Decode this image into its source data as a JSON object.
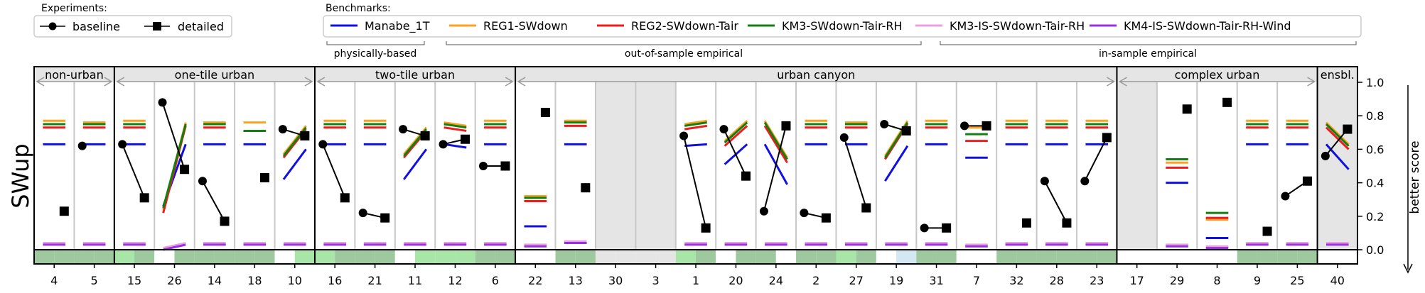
{
  "legend_experiments": {
    "title": "Experiments:",
    "items": [
      {
        "label": "baseline",
        "marker": "circle"
      },
      {
        "label": "detailed",
        "marker": "square"
      }
    ]
  },
  "legend_benchmarks": {
    "title": "Benchmarks:",
    "items": [
      {
        "label": "Manabe_1T",
        "color": "#1010e0"
      },
      {
        "label": "REG1-SWdown",
        "color": "#ffa020"
      },
      {
        "label": "REG2-SWdown-Tair",
        "color": "#ee1c1c"
      },
      {
        "label": "KM3-SWdown-Tair-RH",
        "color": "#108010"
      },
      {
        "label": "KM3-IS-SWdown-Tair-RH",
        "color": "#e8a0e0"
      },
      {
        "label": "KM4-IS-SWdown-Tair-RH-Wind",
        "color": "#9a30e0"
      }
    ],
    "groups": [
      "physically-based",
      "out-of-sample empirical",
      "in-sample empirical"
    ]
  },
  "chart_data": {
    "type": "scatter",
    "ylabel": "SWup",
    "right_label": "better score",
    "ylim": [
      0,
      1
    ],
    "yticks": [
      "0.0",
      "0.2",
      "0.4",
      "0.6",
      "0.8",
      "1.0"
    ],
    "groups": [
      {
        "label": "non-urban",
        "span": [
          0,
          2
        ]
      },
      {
        "label": "one-tile urban",
        "span": [
          2,
          7
        ]
      },
      {
        "label": "two-tile urban",
        "span": [
          7,
          12
        ]
      },
      {
        "label": "urban canyon",
        "span": [
          12,
          27
        ]
      },
      {
        "label": "complex urban",
        "span": [
          27,
          32
        ]
      },
      {
        "label": "ensbl.",
        "span": [
          32,
          33
        ]
      }
    ],
    "series_colors": {
      "manabe": "#1010e0",
      "reg1": "#ffa020",
      "reg2": "#ee1c1c",
      "km3": "#108010",
      "km3is": "#e8a0e0",
      "km4is": "#9a30e0"
    },
    "sites": [
      {
        "label": "4",
        "baseline": null,
        "detailed": 0.23,
        "manabe": [
          0.63,
          0.63
        ],
        "reg1": [
          0.77,
          0.77
        ],
        "reg2": [
          0.73,
          0.73
        ],
        "km3": [
          0.75,
          0.75
        ],
        "km3is": [
          0.04,
          0.04
        ],
        "km4is": [
          0.03,
          0.03
        ],
        "strip": [
          "#9ec89e",
          "#9ec89e"
        ]
      },
      {
        "label": "5",
        "baseline": 0.62,
        "detailed": null,
        "manabe": [
          0.63,
          0.63
        ],
        "reg1": [
          0.76,
          0.76
        ],
        "reg2": [
          0.73,
          0.73
        ],
        "km3": [
          0.75,
          0.75
        ],
        "km3is": [
          0.04,
          0.04
        ],
        "km4is": [
          0.03,
          0.03
        ],
        "strip": [
          "#9ec89e",
          "#9ec89e"
        ]
      },
      {
        "label": "15",
        "baseline": 0.63,
        "detailed": 0.31,
        "manabe": [
          0.63,
          0.63
        ],
        "reg1": [
          0.77,
          0.77
        ],
        "reg2": [
          0.73,
          0.73
        ],
        "km3": [
          0.75,
          0.75
        ],
        "km3is": [
          0.04,
          0.04
        ],
        "km4is": [
          0.03,
          0.03
        ],
        "strip": [
          "#a8e6a8",
          "#9ec89e"
        ]
      },
      {
        "label": "26",
        "baseline": 0.88,
        "detailed": 0.48,
        "manabe": [
          0.26,
          0.63
        ],
        "reg1": [
          0.24,
          0.76
        ],
        "reg2": [
          0.22,
          0.74
        ],
        "km3": [
          0.25,
          0.75
        ],
        "km3is": [
          0.01,
          0.04
        ],
        "km4is": [
          0.0,
          0.03
        ],
        "strip": [
          "#ffffff",
          "#9ec89e"
        ]
      },
      {
        "label": "14",
        "baseline": 0.41,
        "detailed": 0.17,
        "manabe": [
          0.63,
          0.63
        ],
        "reg1": [
          0.76,
          0.76
        ],
        "reg2": [
          0.73,
          0.73
        ],
        "km3": [
          0.75,
          0.75
        ],
        "km3is": [
          0.04,
          0.04
        ],
        "km4is": [
          0.03,
          0.03
        ],
        "strip": [
          "#9ec89e",
          "#9ec89e"
        ]
      },
      {
        "label": "18",
        "baseline": null,
        "detailed": 0.43,
        "manabe": [
          0.63,
          0.63
        ],
        "reg1": [
          0.76,
          0.76
        ],
        "reg2": [
          0.71,
          0.71
        ],
        "km3": [
          0.71,
          0.71
        ],
        "km3is": [
          0.04,
          0.04
        ],
        "km4is": [
          0.03,
          0.03
        ],
        "strip": [
          "#9ec89e",
          "#9ec89e"
        ]
      },
      {
        "label": "10",
        "baseline": 0.72,
        "detailed": 0.68,
        "manabe": [
          0.42,
          0.6
        ],
        "reg1": [
          0.57,
          0.74
        ],
        "reg2": [
          0.55,
          0.72
        ],
        "km3": [
          0.56,
          0.73
        ],
        "km3is": [
          0.04,
          0.04
        ],
        "km4is": [
          0.03,
          0.03
        ],
        "strip": [
          "#ffffff",
          "#a8e6a8"
        ]
      },
      {
        "label": "16",
        "baseline": 0.63,
        "detailed": 0.31,
        "manabe": [
          0.63,
          0.63
        ],
        "reg1": [
          0.77,
          0.77
        ],
        "reg2": [
          0.73,
          0.73
        ],
        "km3": [
          0.75,
          0.75
        ],
        "km3is": [
          0.04,
          0.04
        ],
        "km4is": [
          0.03,
          0.03
        ],
        "strip": [
          "#a8e6a8",
          "#9ec89e"
        ]
      },
      {
        "label": "21",
        "baseline": 0.22,
        "detailed": 0.19,
        "manabe": [
          0.63,
          0.63
        ],
        "reg1": [
          0.77,
          0.77
        ],
        "reg2": [
          0.73,
          0.73
        ],
        "km3": [
          0.75,
          0.75
        ],
        "km3is": [
          0.04,
          0.04
        ],
        "km4is": [
          0.03,
          0.03
        ],
        "strip": [
          "#9ec89e",
          "#9ec89e"
        ]
      },
      {
        "label": "11",
        "baseline": 0.72,
        "detailed": 0.68,
        "manabe": [
          0.42,
          0.6
        ],
        "reg1": [
          0.57,
          0.73
        ],
        "reg2": [
          0.55,
          0.71
        ],
        "km3": [
          0.56,
          0.72
        ],
        "km3is": [
          0.04,
          0.04
        ],
        "km4is": [
          0.03,
          0.03
        ],
        "strip": [
          "#ffffff",
          "#a8e6a8"
        ]
      },
      {
        "label": "12",
        "baseline": 0.63,
        "detailed": 0.66,
        "manabe": [
          0.63,
          0.61
        ],
        "reg1": [
          0.76,
          0.74
        ],
        "reg2": [
          0.73,
          0.71
        ],
        "km3": [
          0.75,
          0.73
        ],
        "km3is": [
          0.04,
          0.04
        ],
        "km4is": [
          0.03,
          0.03
        ],
        "strip": [
          "#a8e6a8",
          "#a8e6a8"
        ]
      },
      {
        "label": "6",
        "baseline": 0.5,
        "detailed": 0.5,
        "manabe": [
          0.63,
          0.63
        ],
        "reg1": [
          0.77,
          0.77
        ],
        "reg2": [
          0.73,
          0.73
        ],
        "km3": [
          0.75,
          0.75
        ],
        "km3is": [
          0.04,
          0.04
        ],
        "km4is": [
          0.03,
          0.03
        ],
        "strip": [
          "#9ec89e",
          "#9ec89e"
        ]
      },
      {
        "label": "22",
        "baseline": null,
        "detailed": 0.82,
        "manabe": [
          0.14,
          0.14
        ],
        "reg1": [
          0.32,
          0.32
        ],
        "reg2": [
          0.29,
          0.29
        ],
        "km3": [
          0.31,
          0.31
        ],
        "km3is": [
          0.03,
          0.03
        ],
        "km4is": [
          0.02,
          0.02
        ],
        "strip": [
          "#ffffff",
          "#ffffff"
        ]
      },
      {
        "label": "13",
        "baseline": null,
        "detailed": 0.37,
        "manabe": [
          0.63,
          0.63
        ],
        "reg1": [
          0.77,
          0.77
        ],
        "reg2": [
          0.74,
          0.74
        ],
        "km3": [
          0.76,
          0.76
        ],
        "km3is": [
          0.05,
          0.05
        ],
        "km4is": [
          0.04,
          0.04
        ],
        "strip": [
          "#9ec89e",
          "#9ec89e"
        ]
      },
      {
        "label": "30",
        "baseline": null,
        "detailed": null,
        "empty": true,
        "strip": [
          "#e5e5e5",
          "#e5e5e5"
        ]
      },
      {
        "label": "3",
        "baseline": null,
        "detailed": null,
        "empty": true,
        "strip": [
          "#e5e5e5",
          "#e5e5e5"
        ]
      },
      {
        "label": "1",
        "baseline": 0.68,
        "detailed": 0.13,
        "manabe": [
          0.62,
          0.63
        ],
        "reg1": [
          0.75,
          0.77
        ],
        "reg2": [
          0.72,
          0.74
        ],
        "km3": [
          0.74,
          0.76
        ],
        "km3is": [
          0.04,
          0.04
        ],
        "km4is": [
          0.03,
          0.03
        ],
        "strip": [
          "#a8e6a8",
          "#9ec89e"
        ]
      },
      {
        "label": "20",
        "baseline": 0.72,
        "detailed": 0.44,
        "manabe": [
          0.51,
          0.63
        ],
        "reg1": [
          0.65,
          0.77
        ],
        "reg2": [
          0.62,
          0.74
        ],
        "km3": [
          0.64,
          0.76
        ],
        "km3is": [
          0.04,
          0.04
        ],
        "km4is": [
          0.03,
          0.03
        ],
        "strip": [
          "#ffffff",
          "#9ec89e"
        ]
      },
      {
        "label": "24",
        "baseline": 0.23,
        "detailed": 0.74,
        "manabe": [
          0.63,
          0.39
        ],
        "reg1": [
          0.77,
          0.55
        ],
        "reg2": [
          0.74,
          0.52
        ],
        "km3": [
          0.76,
          0.54
        ],
        "km3is": [
          0.04,
          0.04
        ],
        "km4is": [
          0.03,
          0.03
        ],
        "strip": [
          "#9ec89e",
          "#ffffff"
        ]
      },
      {
        "label": "2",
        "baseline": 0.22,
        "detailed": 0.19,
        "manabe": [
          0.63,
          0.63
        ],
        "reg1": [
          0.77,
          0.77
        ],
        "reg2": [
          0.73,
          0.73
        ],
        "km3": [
          0.75,
          0.75
        ],
        "km3is": [
          0.04,
          0.04
        ],
        "km4is": [
          0.03,
          0.03
        ],
        "strip": [
          "#9ec89e",
          "#9ec89e"
        ]
      },
      {
        "label": "27",
        "baseline": 0.67,
        "detailed": 0.25,
        "manabe": [
          0.63,
          0.63
        ],
        "reg1": [
          0.76,
          0.76
        ],
        "reg2": [
          0.73,
          0.73
        ],
        "km3": [
          0.75,
          0.75
        ],
        "km3is": [
          0.04,
          0.04
        ],
        "km4is": [
          0.03,
          0.03
        ],
        "strip": [
          "#a8e6a8",
          "#9ec89e"
        ]
      },
      {
        "label": "19",
        "baseline": 0.75,
        "detailed": 0.71,
        "manabe": [
          0.41,
          0.62
        ],
        "reg1": [
          0.56,
          0.77
        ],
        "reg2": [
          0.54,
          0.75
        ],
        "km3": [
          0.55,
          0.76
        ],
        "km3is": [
          0.04,
          0.04
        ],
        "km4is": [
          0.03,
          0.03
        ],
        "strip": [
          "#ffffff",
          "#d4e8f4"
        ]
      },
      {
        "label": "31",
        "baseline": 0.13,
        "detailed": 0.13,
        "manabe": [
          0.63,
          0.63
        ],
        "reg1": [
          0.77,
          0.77
        ],
        "reg2": [
          0.73,
          0.73
        ],
        "km3": [
          0.75,
          0.75
        ],
        "km3is": [
          0.04,
          0.04
        ],
        "km4is": [
          0.03,
          0.03
        ],
        "strip": [
          "#9ec89e",
          "#9ec89e"
        ]
      },
      {
        "label": "7",
        "baseline": 0.74,
        "detailed": 0.74,
        "manabe": [
          0.55,
          0.55
        ],
        "reg1": [
          0.73,
          0.73
        ],
        "reg2": [
          0.65,
          0.65
        ],
        "km3": [
          0.69,
          0.69
        ],
        "km3is": [
          0.03,
          0.03
        ],
        "km4is": [
          0.02,
          0.02
        ],
        "strip": [
          "#ffffff",
          "#ffffff"
        ]
      },
      {
        "label": "32",
        "baseline": null,
        "detailed": 0.16,
        "manabe": [
          0.63,
          0.63
        ],
        "reg1": [
          0.77,
          0.77
        ],
        "reg2": [
          0.73,
          0.73
        ],
        "km3": [
          0.75,
          0.75
        ],
        "km3is": [
          0.04,
          0.04
        ],
        "km4is": [
          0.03,
          0.03
        ],
        "strip": [
          "#9ec89e",
          "#9ec89e"
        ]
      },
      {
        "label": "28",
        "baseline": 0.41,
        "detailed": 0.16,
        "manabe": [
          0.63,
          0.63
        ],
        "reg1": [
          0.77,
          0.77
        ],
        "reg2": [
          0.73,
          0.73
        ],
        "km3": [
          0.75,
          0.75
        ],
        "km3is": [
          0.04,
          0.04
        ],
        "km4is": [
          0.03,
          0.03
        ],
        "strip": [
          "#9ec89e",
          "#9ec89e"
        ]
      },
      {
        "label": "23",
        "baseline": 0.41,
        "detailed": 0.67,
        "manabe": [
          0.63,
          0.63
        ],
        "reg1": [
          0.77,
          0.77
        ],
        "reg2": [
          0.73,
          0.73
        ],
        "km3": [
          0.75,
          0.75
        ],
        "km3is": [
          0.04,
          0.04
        ],
        "km4is": [
          0.03,
          0.03
        ],
        "strip": [
          "#9ec89e",
          "#9ec89e"
        ]
      },
      {
        "label": "17",
        "baseline": null,
        "detailed": null,
        "empty": true,
        "strip": [
          "#ffffff",
          "#ffffff"
        ]
      },
      {
        "label": "29",
        "baseline": null,
        "detailed": 0.84,
        "manabe": [
          0.4,
          0.4
        ],
        "reg1": [
          0.52,
          0.52
        ],
        "reg2": [
          0.49,
          0.49
        ],
        "km3": [
          0.54,
          0.54
        ],
        "km3is": [
          0.03,
          0.03
        ],
        "km4is": [
          0.02,
          0.02
        ],
        "strip": [
          "#ffffff",
          "#ffffff"
        ]
      },
      {
        "label": "8",
        "baseline": null,
        "detailed": 0.88,
        "manabe": [
          0.07,
          0.07
        ],
        "reg1": [
          0.18,
          0.18
        ],
        "reg2": [
          0.19,
          0.19
        ],
        "km3": [
          0.22,
          0.22
        ],
        "km3is": [
          0.02,
          0.02
        ],
        "km4is": [
          0.01,
          0.01
        ],
        "strip": [
          "#ffffff",
          "#ffffff"
        ]
      },
      {
        "label": "9",
        "baseline": null,
        "detailed": 0.11,
        "manabe": [
          0.63,
          0.63
        ],
        "reg1": [
          0.77,
          0.77
        ],
        "reg2": [
          0.73,
          0.73
        ],
        "km3": [
          0.75,
          0.75
        ],
        "km3is": [
          0.04,
          0.04
        ],
        "km4is": [
          0.03,
          0.03
        ],
        "strip": [
          "#9ec89e",
          "#9ec89e"
        ]
      },
      {
        "label": "25",
        "baseline": 0.32,
        "detailed": 0.41,
        "manabe": [
          0.63,
          0.63
        ],
        "reg1": [
          0.77,
          0.77
        ],
        "reg2": [
          0.73,
          0.73
        ],
        "km3": [
          0.75,
          0.75
        ],
        "km3is": [
          0.04,
          0.04
        ],
        "km4is": [
          0.03,
          0.03
        ],
        "strip": [
          "#9ec89e",
          "#9ec89e"
        ]
      },
      {
        "label": "40",
        "baseline": 0.56,
        "detailed": 0.72,
        "manabe": [
          0.63,
          0.48
        ],
        "reg1": [
          0.76,
          0.63
        ],
        "reg2": [
          0.73,
          0.6
        ],
        "km3": [
          0.75,
          0.62
        ],
        "km3is": [
          0.04,
          0.04
        ],
        "km4is": [
          0.03,
          0.03
        ],
        "strip": [
          "#ffffff",
          "#ffffff"
        ]
      }
    ]
  }
}
